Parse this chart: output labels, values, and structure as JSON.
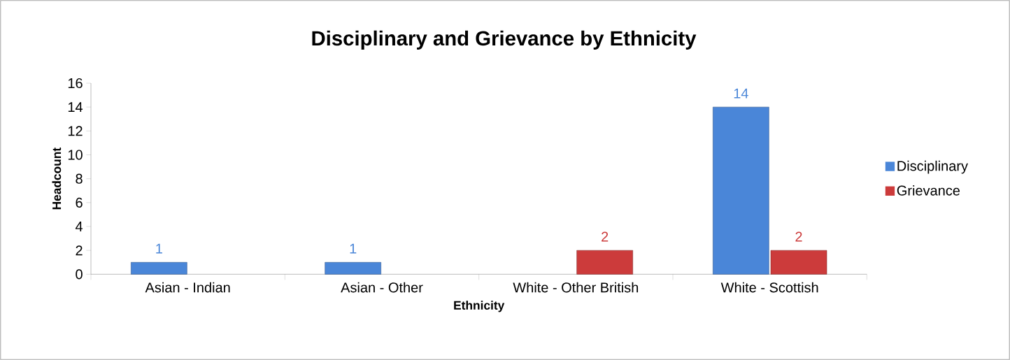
{
  "chart_data": {
    "type": "bar",
    "title": "Disciplinary and Grievance by Ethnicity",
    "xlabel": "Ethnicity",
    "ylabel": "Headcount",
    "categories": [
      "Asian - Indian",
      "Asian - Other",
      "White - Other British",
      "White - Scottish"
    ],
    "series": [
      {
        "name": "Disciplinary",
        "color": "#4a86d8",
        "values": [
          1,
          1,
          null,
          14
        ]
      },
      {
        "name": "Grievance",
        "color": "#cc3b3b",
        "values": [
          null,
          null,
          2,
          2
        ]
      }
    ],
    "ylim": [
      0,
      16
    ],
    "yticks": [
      0,
      2,
      4,
      6,
      8,
      10,
      12,
      14,
      16
    ],
    "legend": "right",
    "data_labels": true,
    "grid": false
  }
}
